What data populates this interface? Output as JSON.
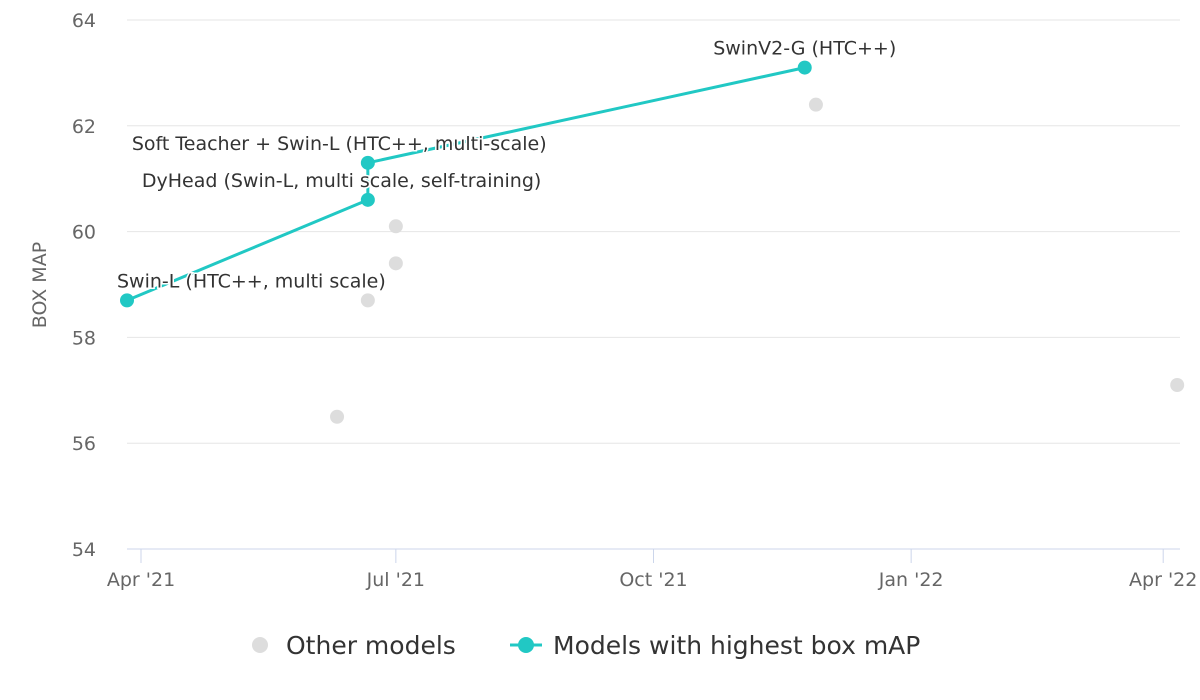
{
  "chart_data": {
    "type": "scatter",
    "ylabel": "BOX MAP",
    "ylim": [
      54,
      64
    ],
    "yticks": [
      54,
      56,
      58,
      60,
      62,
      64
    ],
    "xlim": [
      "2021-03-27",
      "2022-04-07"
    ],
    "xticks": [
      {
        "date": "2021-04-01",
        "label": "Apr '21"
      },
      {
        "date": "2021-07-01",
        "label": "Jul '21"
      },
      {
        "date": "2021-10-01",
        "label": "Oct '21"
      },
      {
        "date": "2022-01-01",
        "label": "Jan '22"
      },
      {
        "date": "2022-04-01",
        "label": "Apr '22"
      }
    ],
    "series": [
      {
        "name": "Other models",
        "color": "#dddddd",
        "points": [
          {
            "x": "2021-06-10",
            "y": 56.5
          },
          {
            "x": "2021-06-21",
            "y": 58.7
          },
          {
            "x": "2021-07-01",
            "y": 60.1
          },
          {
            "x": "2021-07-01",
            "y": 59.4
          },
          {
            "x": "2021-11-28",
            "y": 62.4
          },
          {
            "x": "2022-04-06",
            "y": 57.1
          }
        ]
      },
      {
        "name": "Models with highest box mAP",
        "color": "#21c8c4",
        "points": [
          {
            "x": "2021-03-27",
            "y": 58.7,
            "label": "Swin-L (HTC++, multi scale)"
          },
          {
            "x": "2021-06-21",
            "y": 60.6,
            "label": "DyHead (Swin-L, multi scale, self-training)"
          },
          {
            "x": "2021-06-21",
            "y": 61.3,
            "label": "Soft Teacher + Swin-L (HTC++, multi-scale)"
          },
          {
            "x": "2021-11-24",
            "y": 63.1,
            "label": "SwinV2-G (HTC++)"
          }
        ]
      }
    ],
    "legend_position": "bottom-center",
    "grid": true
  }
}
